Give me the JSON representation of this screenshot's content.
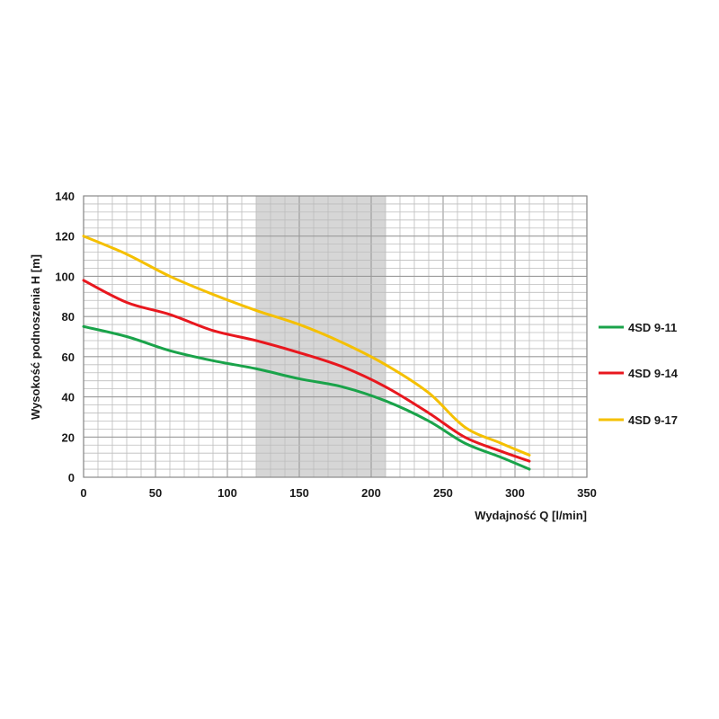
{
  "chart_data": {
    "type": "line",
    "xlabel": "Wydajność Q [l/min]",
    "ylabel": "Wysokość podnoszenia H [m]",
    "xlim": [
      0,
      350
    ],
    "ylim": [
      0,
      140
    ],
    "x_ticks": [
      0,
      50,
      100,
      150,
      200,
      250,
      300,
      350
    ],
    "y_ticks": [
      0,
      20,
      40,
      60,
      80,
      100,
      120,
      140
    ],
    "x_tick_labels": [
      "0",
      "50",
      "100",
      "150",
      "200",
      "250",
      "300",
      "350"
    ],
    "y_tick_labels": [
      "0",
      "20",
      "40",
      "60",
      "80",
      "100",
      "120",
      "140"
    ],
    "grid": true,
    "highlight_band": {
      "x_range": [
        120,
        210
      ],
      "color": "#d6d6d6"
    },
    "legend_position": "right",
    "series": [
      {
        "name": "4SD 9-11",
        "color": "#1aa34a",
        "x": [
          0,
          30,
          60,
          90,
          120,
          150,
          180,
          210,
          240,
          265,
          290,
          310
        ],
        "y": [
          75,
          70,
          63,
          58,
          54,
          49,
          45,
          38,
          28,
          17,
          10,
          4
        ]
      },
      {
        "name": "4SD 9-14",
        "color": "#e8171e",
        "x": [
          0,
          30,
          60,
          90,
          120,
          150,
          180,
          210,
          240,
          265,
          290,
          310
        ],
        "y": [
          98,
          87,
          81,
          73,
          68,
          62,
          55,
          45,
          32,
          20,
          13,
          8
        ]
      },
      {
        "name": "4SD 9-17",
        "color": "#f5c000",
        "x": [
          0,
          30,
          60,
          90,
          120,
          150,
          180,
          210,
          240,
          265,
          290,
          310
        ],
        "y": [
          120,
          111,
          100,
          91,
          83,
          76,
          67,
          56,
          42,
          25,
          17,
          11
        ]
      }
    ]
  }
}
